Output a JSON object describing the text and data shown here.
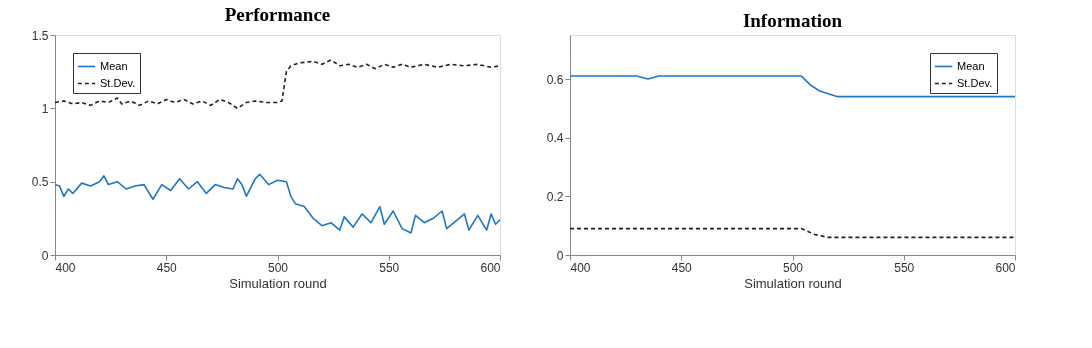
{
  "chart_data": [
    {
      "type": "line",
      "title": "Performance",
      "xlabel": "Simulation round",
      "xlim": [
        400,
        600
      ],
      "xticks": [
        400,
        450,
        500,
        550,
        600
      ],
      "ylim": [
        0,
        1.5
      ],
      "yticks": [
        0,
        0.5,
        1,
        1.5
      ],
      "grid": false,
      "legend": "top left",
      "series": [
        {
          "name": "Mean",
          "color": "#1f77c8",
          "line_style": "solid",
          "x": [
            400,
            402,
            404,
            406,
            408,
            412,
            416,
            420,
            422,
            424,
            428,
            432,
            436,
            440,
            444,
            448,
            452,
            456,
            460,
            464,
            468,
            472,
            476,
            480,
            482,
            484,
            486,
            490,
            492,
            496,
            500,
            504,
            506,
            508,
            512,
            516,
            520,
            524,
            528,
            530,
            534,
            538,
            542,
            546,
            548,
            552,
            556,
            560,
            562,
            566,
            570,
            574,
            576,
            580,
            584,
            586,
            590,
            594,
            596,
            598,
            600
          ],
          "values": [
            0.48,
            0.47,
            0.4,
            0.45,
            0.42,
            0.49,
            0.47,
            0.5,
            0.54,
            0.48,
            0.5,
            0.45,
            0.47,
            0.48,
            0.38,
            0.48,
            0.44,
            0.52,
            0.45,
            0.5,
            0.42,
            0.48,
            0.46,
            0.45,
            0.52,
            0.48,
            0.4,
            0.52,
            0.55,
            0.48,
            0.51,
            0.5,
            0.4,
            0.35,
            0.33,
            0.25,
            0.2,
            0.22,
            0.17,
            0.26,
            0.19,
            0.28,
            0.22,
            0.33,
            0.21,
            0.3,
            0.18,
            0.15,
            0.27,
            0.22,
            0.25,
            0.3,
            0.18,
            0.23,
            0.28,
            0.17,
            0.27,
            0.17,
            0.28,
            0.21,
            0.24
          ]
        },
        {
          "name": "St.Dev.",
          "color": "#222222",
          "line_style": "dashed",
          "x": [
            400,
            404,
            408,
            412,
            416,
            420,
            424,
            428,
            430,
            434,
            438,
            442,
            446,
            450,
            454,
            458,
            462,
            466,
            470,
            474,
            478,
            482,
            486,
            490,
            495,
            500,
            502,
            504,
            506,
            510,
            516,
            520,
            524,
            528,
            532,
            536,
            540,
            544,
            548,
            552,
            556,
            560,
            566,
            572,
            578,
            584,
            590,
            596,
            600
          ],
          "values": [
            1.04,
            1.05,
            1.03,
            1.04,
            1.02,
            1.05,
            1.04,
            1.07,
            1.03,
            1.05,
            1.02,
            1.05,
            1.03,
            1.06,
            1.04,
            1.06,
            1.03,
            1.05,
            1.02,
            1.06,
            1.04,
            1.0,
            1.04,
            1.05,
            1.04,
            1.04,
            1.05,
            1.25,
            1.29,
            1.31,
            1.32,
            1.3,
            1.33,
            1.29,
            1.3,
            1.28,
            1.3,
            1.27,
            1.3,
            1.28,
            1.3,
            1.28,
            1.3,
            1.28,
            1.3,
            1.29,
            1.3,
            1.28,
            1.29
          ]
        }
      ]
    },
    {
      "type": "line",
      "title": "Information",
      "xlabel": "Simulation round",
      "xlim": [
        400,
        600
      ],
      "xticks": [
        400,
        450,
        500,
        550,
        600
      ],
      "ylim": [
        0,
        0.75
      ],
      "yticks": [
        0,
        0.2,
        0.4,
        0.6
      ],
      "grid": false,
      "legend": "top right",
      "series": [
        {
          "name": "Mean",
          "color": "#1f77c8",
          "line_style": "solid",
          "x": [
            400,
            410,
            420,
            430,
            435,
            440,
            450,
            460,
            470,
            480,
            490,
            500,
            504,
            508,
            512,
            516,
            520,
            530,
            540,
            550,
            560,
            570,
            580,
            590,
            600
          ],
          "values": [
            0.61,
            0.61,
            0.61,
            0.61,
            0.6,
            0.61,
            0.61,
            0.61,
            0.61,
            0.61,
            0.61,
            0.61,
            0.61,
            0.58,
            0.56,
            0.55,
            0.54,
            0.54,
            0.54,
            0.54,
            0.54,
            0.54,
            0.54,
            0.54,
            0.54
          ]
        },
        {
          "name": "St.Dev.",
          "color": "#222222",
          "line_style": "dashed",
          "x": [
            400,
            420,
            440,
            460,
            480,
            500,
            504,
            510,
            516,
            520,
            540,
            560,
            580,
            600
          ],
          "values": [
            0.09,
            0.09,
            0.09,
            0.09,
            0.09,
            0.09,
            0.09,
            0.07,
            0.06,
            0.06,
            0.06,
            0.06,
            0.06,
            0.06
          ]
        }
      ]
    }
  ]
}
